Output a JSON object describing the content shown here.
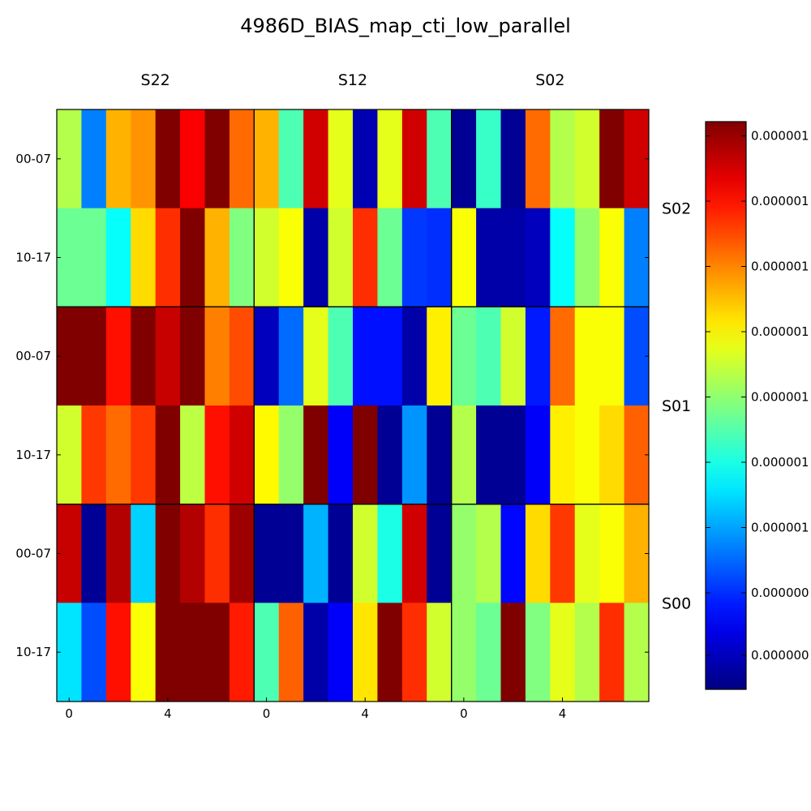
{
  "chart_data": {
    "type": "heatmap",
    "title": "4986D_BIAS_map_cti_low_parallel",
    "colormap": "jet",
    "column_groups": [
      "S22",
      "S12",
      "S02"
    ],
    "row_groups": [
      "S02",
      "S01",
      "S00"
    ],
    "row_tick_labels": [
      "00-07",
      "10-17"
    ],
    "x_tick_labels": [
      "0",
      "4"
    ],
    "x_tick_positions": [
      0,
      4
    ],
    "colorbar_tick_labels": [
      "0.000000",
      "0.000000",
      "0.000001",
      "0.000001",
      "0.000001",
      "0.000001",
      "0.000001",
      "0.000001",
      "0.000001"
    ],
    "colorbar_tick_levels": [
      0.06,
      0.17,
      0.285,
      0.4,
      0.515,
      0.63,
      0.745,
      0.86,
      0.975
    ],
    "cells": [
      [
        [
          [
            0.55,
            0.25,
            0.7,
            0.73,
            1.0,
            0.88,
            1.0,
            0.77
          ],
          [
            0.7,
            0.45,
            0.92,
            0.6,
            0.05,
            0.6,
            0.92,
            0.45
          ],
          [
            0.02,
            0.43,
            0.02,
            0.77,
            0.55,
            0.58,
            1.0,
            0.92
          ]
        ],
        [
          [
            0.48,
            0.48,
            0.38,
            0.66,
            0.83,
            1.0,
            0.7,
            0.5
          ],
          [
            0.58,
            0.62,
            0.04,
            0.58,
            0.83,
            0.48,
            0.18,
            0.17
          ],
          [
            0.62,
            0.04,
            0.04,
            0.06,
            0.38,
            0.52,
            0.62,
            0.25
          ]
        ]
      ],
      [
        [
          [
            1.0,
            1.0,
            0.86,
            1.0,
            0.93,
            1.0,
            0.75,
            0.8
          ],
          [
            0.06,
            0.23,
            0.6,
            0.45,
            0.14,
            0.14,
            0.04,
            0.64
          ],
          [
            0.48,
            0.45,
            0.58,
            0.15,
            0.77,
            0.62,
            0.62,
            0.2
          ]
        ],
        [
          [
            0.58,
            0.82,
            0.77,
            0.82,
            1.0,
            0.56,
            0.86,
            0.92
          ],
          [
            0.63,
            0.52,
            1.0,
            0.12,
            1.0,
            0.02,
            0.27,
            0.02
          ],
          [
            0.55,
            0.02,
            0.02,
            0.12,
            0.64,
            0.62,
            0.66,
            0.78
          ]
        ]
      ],
      [
        [
          [
            0.93,
            0.02,
            0.95,
            0.33,
            1.0,
            0.95,
            0.83,
            0.97
          ],
          [
            0.02,
            0.02,
            0.3,
            0.02,
            0.58,
            0.4,
            0.92,
            0.02
          ],
          [
            0.52,
            0.55,
            0.13,
            0.66,
            0.82,
            0.6,
            0.62,
            0.7
          ]
        ],
        [
          [
            0.35,
            0.2,
            0.86,
            0.62,
            1.0,
            1.0,
            1.0,
            0.85
          ],
          [
            0.45,
            0.78,
            0.04,
            0.12,
            0.65,
            1.0,
            0.83,
            0.58
          ],
          [
            0.52,
            0.48,
            1.0,
            0.5,
            0.6,
            0.55,
            0.83,
            0.55
          ]
        ]
      ]
    ]
  }
}
